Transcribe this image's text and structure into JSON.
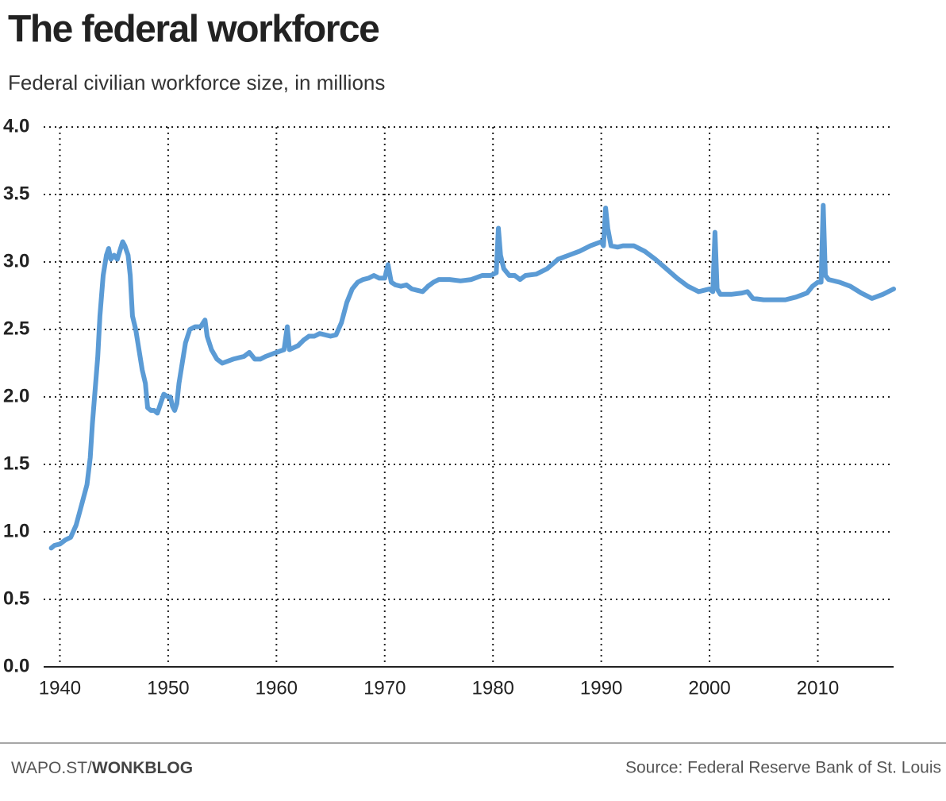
{
  "chart_data": {
    "type": "line",
    "title": "The federal workforce",
    "subtitle": "Federal civilian workforce size, in millions",
    "color": "#5b9bd5",
    "grid": true,
    "x": [
      1939.2,
      1939.5,
      1940,
      1940.5,
      1941,
      1941.5,
      1942,
      1942.5,
      1942.8,
      1943,
      1943.3,
      1943.5,
      1943.7,
      1944,
      1944.3,
      1944.5,
      1944.7,
      1945,
      1945.3,
      1945.6,
      1945.8,
      1946,
      1946.3,
      1946.5,
      1946.7,
      1947,
      1947.3,
      1947.6,
      1947.9,
      1948.1,
      1948.4,
      1948.7,
      1949,
      1949.3,
      1949.6,
      1950,
      1950.2,
      1950.4,
      1950.6,
      1950.8,
      1951,
      1951.3,
      1951.6,
      1952,
      1952.5,
      1953,
      1953.4,
      1953.6,
      1954,
      1954.5,
      1955,
      1956,
      1957,
      1957.5,
      1958,
      1958.5,
      1959,
      1960,
      1960.7,
      1961,
      1961.2,
      1962,
      1962.5,
      1963,
      1963.5,
      1964,
      1965,
      1965.5,
      1966,
      1966.5,
      1967,
      1967.5,
      1968,
      1968.5,
      1969,
      1969.5,
      1970,
      1970.3,
      1970.6,
      1971,
      1971.5,
      1972,
      1972.5,
      1973,
      1973.5,
      1974,
      1974.5,
      1975,
      1976,
      1977,
      1978,
      1979,
      1979.8,
      1980.3,
      1980.5,
      1980.7,
      1981,
      1981.5,
      1982,
      1982.5,
      1983,
      1984,
      1985,
      1986,
      1987,
      1988,
      1989,
      1990,
      1990.2,
      1990.4,
      1990.6,
      1990.9,
      1991.5,
      1992,
      1993,
      1994,
      1995,
      1996,
      1997,
      1998,
      1999,
      2000,
      2000.3,
      2000.5,
      2000.7,
      2001,
      2002,
      2003,
      2003.5,
      2004,
      2005,
      2006,
      2007,
      2008,
      2009,
      2009.5,
      2010,
      2010.3,
      2010.5,
      2010.7,
      2011,
      2012,
      2013,
      2014,
      2015,
      2016,
      2017
    ],
    "values": [
      0.88,
      0.9,
      0.91,
      0.94,
      0.96,
      1.05,
      1.2,
      1.35,
      1.55,
      1.8,
      2.1,
      2.3,
      2.6,
      2.9,
      3.05,
      3.1,
      3.02,
      3.05,
      3.02,
      3.1,
      3.15,
      3.12,
      3.05,
      2.9,
      2.6,
      2.5,
      2.35,
      2.2,
      2.1,
      1.92,
      1.9,
      1.9,
      1.88,
      1.95,
      2.02,
      2.0,
      2.0,
      1.93,
      1.9,
      1.95,
      2.1,
      2.25,
      2.4,
      2.5,
      2.52,
      2.52,
      2.57,
      2.45,
      2.35,
      2.28,
      2.25,
      2.28,
      2.3,
      2.33,
      2.28,
      2.28,
      2.3,
      2.33,
      2.35,
      2.52,
      2.35,
      2.38,
      2.42,
      2.45,
      2.45,
      2.47,
      2.45,
      2.46,
      2.55,
      2.7,
      2.8,
      2.85,
      2.87,
      2.88,
      2.9,
      2.88,
      2.88,
      2.98,
      2.85,
      2.83,
      2.82,
      2.83,
      2.8,
      2.79,
      2.78,
      2.82,
      2.85,
      2.87,
      2.87,
      2.86,
      2.87,
      2.9,
      2.9,
      2.92,
      3.25,
      3.05,
      2.95,
      2.9,
      2.9,
      2.87,
      2.9,
      2.91,
      2.95,
      3.02,
      3.05,
      3.08,
      3.12,
      3.15,
      3.12,
      3.4,
      3.25,
      3.12,
      3.11,
      3.12,
      3.12,
      3.08,
      3.02,
      2.95,
      2.88,
      2.82,
      2.78,
      2.8,
      2.78,
      3.22,
      2.8,
      2.76,
      2.76,
      2.77,
      2.78,
      2.73,
      2.72,
      2.72,
      2.72,
      2.74,
      2.77,
      2.82,
      2.85,
      2.85,
      3.42,
      2.9,
      2.87,
      2.85,
      2.82,
      2.77,
      2.73,
      2.76,
      2.8
    ],
    "xlim": [
      1938.5,
      2017
    ],
    "xticks": [
      1940,
      1950,
      1960,
      1970,
      1980,
      1990,
      2000,
      2010
    ],
    "ylim": [
      0,
      4
    ],
    "yticks": [
      {
        "value": 0,
        "label": "0.0"
      },
      0.5,
      {
        "value": 1,
        "label": "1.0"
      },
      1.5,
      {
        "value": 2,
        "label": "2.0"
      },
      2.5,
      {
        "value": 3,
        "label": "3.0"
      },
      3.5,
      {
        "value": 4,
        "label": "4.0"
      }
    ]
  },
  "footer": {
    "site": "WAPO.ST/",
    "blog": "WONKBLOG",
    "source": "Source: Federal Reserve Bank of St. Louis"
  }
}
